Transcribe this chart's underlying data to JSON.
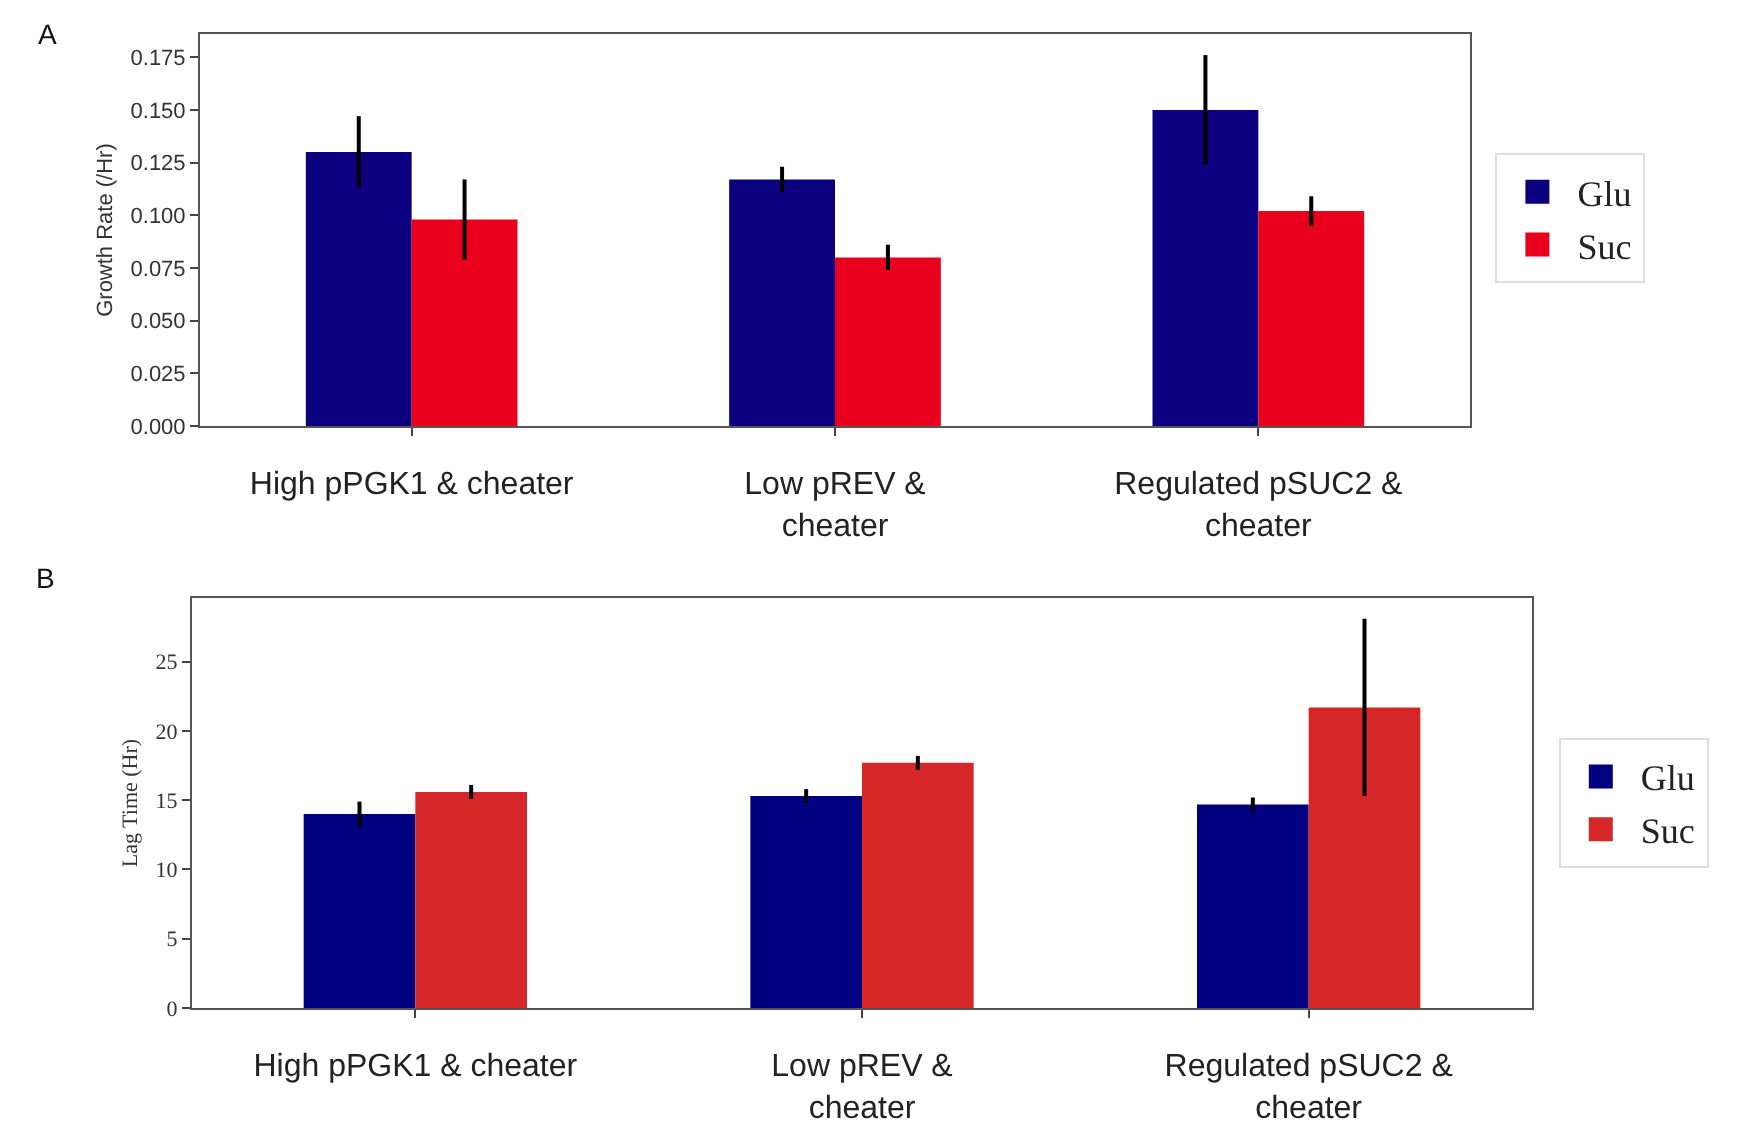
{
  "chart_data": [
    {
      "type": "bar",
      "title": "A",
      "ylabel": "Growth Rate (/Hr)",
      "categories": [
        "High pPGK1 & cheater",
        "Low pREV &\ncheater",
        "Regulated pSUC2 &\ncheater"
      ],
      "series": [
        {
          "name": "Glu",
          "color": "#0a0080",
          "values": [
            0.13,
            0.117,
            0.15
          ],
          "errors": [
            0.017,
            0.006,
            0.026
          ]
        },
        {
          "name": "Suc",
          "color": "#e8001c",
          "values": [
            0.098,
            0.08,
            0.102
          ],
          "errors": [
            0.019,
            0.006,
            0.007
          ]
        }
      ],
      "ylim": [
        0,
        0.186
      ],
      "yticks": [
        {
          "value": 0,
          "label": "0.000"
        },
        {
          "value": 0.025,
          "label": "0.025"
        },
        {
          "value": 0.05,
          "label": "0.050"
        },
        {
          "value": 0.075,
          "label": "0.075"
        },
        {
          "value": 0.1,
          "label": "0.100"
        },
        {
          "value": 0.125,
          "label": "0.125"
        },
        {
          "value": 0.15,
          "label": "0.150"
        },
        {
          "value": 0.175,
          "label": "0.175"
        }
      ],
      "grid": false,
      "legend": "right"
    },
    {
      "type": "bar",
      "title": "B",
      "ylabel": "Lag Time (Hr)",
      "categories": [
        "High pPGK1 & cheater",
        "Low pREV &\ncheater",
        "Regulated pSUC2 &\ncheater"
      ],
      "series": [
        {
          "name": "Glu",
          "color": "#000080",
          "values": [
            14.0,
            15.3,
            14.7
          ],
          "errors": [
            0.9,
            0.5,
            0.5
          ]
        },
        {
          "name": "Suc",
          "color": "#d62728",
          "values": [
            15.6,
            17.7,
            21.7
          ],
          "errors": [
            0.5,
            0.5,
            6.4
          ]
        }
      ],
      "ylim": [
        0,
        29.6
      ],
      "yticks": [
        0,
        5,
        10,
        15,
        20,
        25
      ],
      "grid": false,
      "legend": "right"
    }
  ]
}
